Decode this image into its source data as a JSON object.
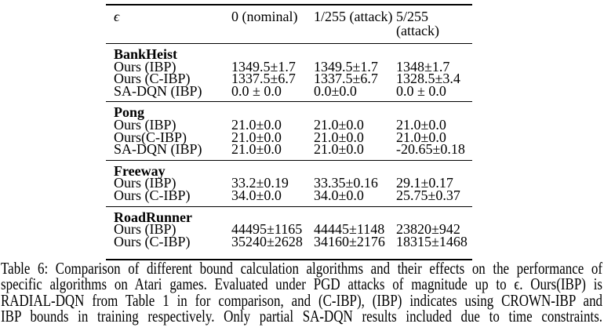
{
  "page": {
    "background": "#ffffff",
    "text_color": "#000000"
  },
  "table": {
    "header": {
      "epsilon_symbol": "ϵ",
      "columns": [
        "0 (nominal)",
        "1/255 (attack)",
        "5/255 (attack)"
      ]
    },
    "sections": [
      {
        "game": "BankHeist",
        "rows": [
          {
            "label": "Ours (IBP)",
            "values": [
              "1349.5±1.7",
              "1349.5±1.7",
              "1348±1.7"
            ]
          },
          {
            "label": "Ours (C-IBP)",
            "values": [
              "1337.5±6.7",
              "1337.5±6.7",
              "1328.5±3.4"
            ]
          },
          {
            "label": "SA-DQN (IBP)",
            "values": [
              "0.0 ± 0.0",
              "0.0±0.0",
              "0.0 ± 0.0"
            ]
          }
        ]
      },
      {
        "game": "Pong",
        "rows": [
          {
            "label": "Ours (IBP)",
            "values": [
              "21.0±0.0",
              "21.0±0.0",
              "21.0±0.0"
            ]
          },
          {
            "label": "Ours(C-IBP)",
            "values": [
              "21.0±0.0",
              "21.0±0.0",
              "21.0±0.0"
            ]
          },
          {
            "label": "SA-DQN (IBP)",
            "values": [
              "21.0±0.0",
              "21.0±0.0",
              "-20.65±0.18"
            ]
          }
        ]
      },
      {
        "game": "Freeway",
        "rows": [
          {
            "label": "Ours (IBP)",
            "values": [
              "33.2±0.19",
              "33.35±0.16",
              "29.1±0.17"
            ]
          },
          {
            "label": "Ours (C-IBP)",
            "values": [
              "34.0±0.0",
              "34.0±0.0",
              "25.75±0.37"
            ]
          }
        ]
      },
      {
        "game": "RoadRunner",
        "rows": [
          {
            "label": "Ours (IBP)",
            "values": [
              "44495±1165",
              "44445±1148",
              "23820±942"
            ]
          },
          {
            "label": "Ours (C-IBP)",
            "values": [
              "35240±2628",
              "34160±2176",
              "18315±1468"
            ]
          }
        ]
      }
    ]
  },
  "caption": {
    "lines": [
      "Table 6: Comparison of different bound calculation algorithms and their effects on the performance of",
      "specific algorithms on Atari games. Evaluated under PGD attacks of magnitude up to ϵ. Ours(IBP) is",
      "RADIAL-DQN from Table 1 in for comparison, and (C-IBP), (IBP) indicates using CROWN-IBP and",
      "IBP bounds in training respectively. Only partial SA-DQN results included due to time constraints."
    ]
  }
}
